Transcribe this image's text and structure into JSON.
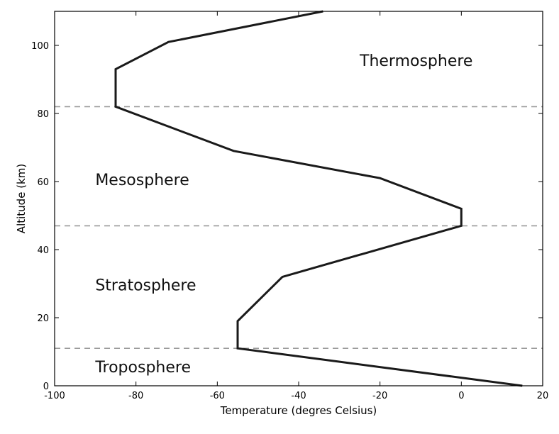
{
  "chart_data": {
    "type": "line",
    "title": "",
    "xlabel": "Temperature (degres Celsius)",
    "ylabel": "Altitude (km)",
    "xlim": [
      -100,
      20
    ],
    "ylim": [
      0,
      110
    ],
    "xticks": [
      -100,
      -80,
      -60,
      -40,
      -20,
      0,
      20
    ],
    "yticks": [
      0,
      20,
      40,
      60,
      80,
      100
    ],
    "grid": false,
    "series": [
      {
        "color": "#1a1a1a",
        "points": [
          {
            "x": 15,
            "y": 0
          },
          {
            "x": -55,
            "y": 11
          },
          {
            "x": -55,
            "y": 19
          },
          {
            "x": -44,
            "y": 32
          },
          {
            "x": 0,
            "y": 47
          },
          {
            "x": 0,
            "y": 52
          },
          {
            "x": -20,
            "y": 61
          },
          {
            "x": -56,
            "y": 69
          },
          {
            "x": -85,
            "y": 82
          },
          {
            "x": -85,
            "y": 93
          },
          {
            "x": -72,
            "y": 101
          },
          {
            "x": -34,
            "y": 110
          }
        ]
      }
    ],
    "boundaries": [
      {
        "y": 11,
        "style": "dashed",
        "color": "#999999"
      },
      {
        "y": 47,
        "style": "dashed",
        "color": "#999999"
      },
      {
        "y": 82,
        "style": "dashed",
        "color": "#999999"
      }
    ],
    "annotations": [
      {
        "text": "Thermosphere",
        "x": -25,
        "y": 94
      },
      {
        "text": "Mesosphere",
        "x": -90,
        "y": 59
      },
      {
        "text": "Stratosphere",
        "x": -90,
        "y": 28
      },
      {
        "text": "Troposphere",
        "x": -90,
        "y": 4
      }
    ]
  }
}
